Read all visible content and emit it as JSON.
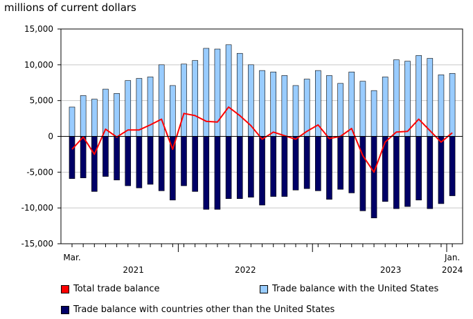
{
  "chart_data": {
    "type": "bar",
    "y_unit": "millions of current dollars",
    "ylim": [
      -15000,
      15000
    ],
    "y_ticks": [
      "15,000",
      "10,000",
      "5,000",
      "0",
      "-5,000",
      "-10,000",
      "-15,000"
    ],
    "x_labels": {
      "first_month": "Mar.",
      "last_month": "Jan.",
      "years": [
        "2021",
        "2022",
        "2023",
        "2024"
      ]
    },
    "categories": [
      "Mar 2021",
      "Apr 2021",
      "May 2021",
      "Jun 2021",
      "Jul 2021",
      "Aug 2021",
      "Sep 2021",
      "Oct 2021",
      "Nov 2021",
      "Dec 2021",
      "Jan 2022",
      "Feb 2022",
      "Mar 2022",
      "Apr 2022",
      "May 2022",
      "Jun 2022",
      "Jul 2022",
      "Aug 2022",
      "Sep 2022",
      "Oct 2022",
      "Nov 2022",
      "Dec 2022",
      "Jan 2023",
      "Feb 2023",
      "Mar 2023",
      "Apr 2023",
      "May 2023",
      "Jun 2023",
      "Jul 2023",
      "Aug 2023",
      "Sep 2023",
      "Oct 2023",
      "Nov 2023",
      "Dec 2023",
      "Jan 2024"
    ],
    "series": [
      {
        "name": "Trade balance with the United States",
        "color": "#99ccff",
        "kind": "bar",
        "values": [
          4100,
          5700,
          5200,
          6600,
          6000,
          7800,
          8100,
          8300,
          10000,
          7100,
          10100,
          10600,
          12300,
          12200,
          12800,
          11600,
          10000,
          9200,
          9000,
          8500,
          7100,
          8000,
          9200,
          8500,
          7400,
          9000,
          7700,
          6400,
          8300,
          10700,
          10500,
          11300,
          10900,
          8600,
          8800
        ]
      },
      {
        "name": "Trade balance with countries other than the United States",
        "color": "#000066",
        "kind": "bar",
        "values": [
          -5900,
          -5800,
          -7700,
          -5600,
          -6100,
          -6900,
          -7200,
          -6700,
          -7600,
          -8900,
          -6900,
          -7700,
          -10200,
          -10200,
          -8700,
          -8700,
          -8500,
          -9600,
          -8400,
          -8400,
          -7500,
          -7300,
          -7600,
          -8800,
          -7400,
          -7900,
          -10400,
          -11400,
          -9100,
          -10100,
          -9800,
          -8900,
          -10100,
          -9400,
          -8300
        ]
      },
      {
        "name": "Total trade balance",
        "color": "#ff0000",
        "kind": "line",
        "values": [
          -1800,
          -100,
          -2500,
          1000,
          -100,
          900,
          900,
          1600,
          2400,
          -1800,
          3200,
          2900,
          2100,
          2000,
          4100,
          2900,
          1500,
          -400,
          600,
          100,
          -400,
          700,
          1600,
          -300,
          0,
          1100,
          -2700,
          -5000,
          -800,
          600,
          700,
          2400,
          800,
          -800,
          500
        ]
      }
    ],
    "legend": [
      {
        "name": "Total trade balance",
        "color": "#ff0000"
      },
      {
        "name": "Trade balance with the United States",
        "color": "#99ccff"
      },
      {
        "name": "Trade balance with countries other than the United States",
        "color": "#000066"
      }
    ]
  }
}
